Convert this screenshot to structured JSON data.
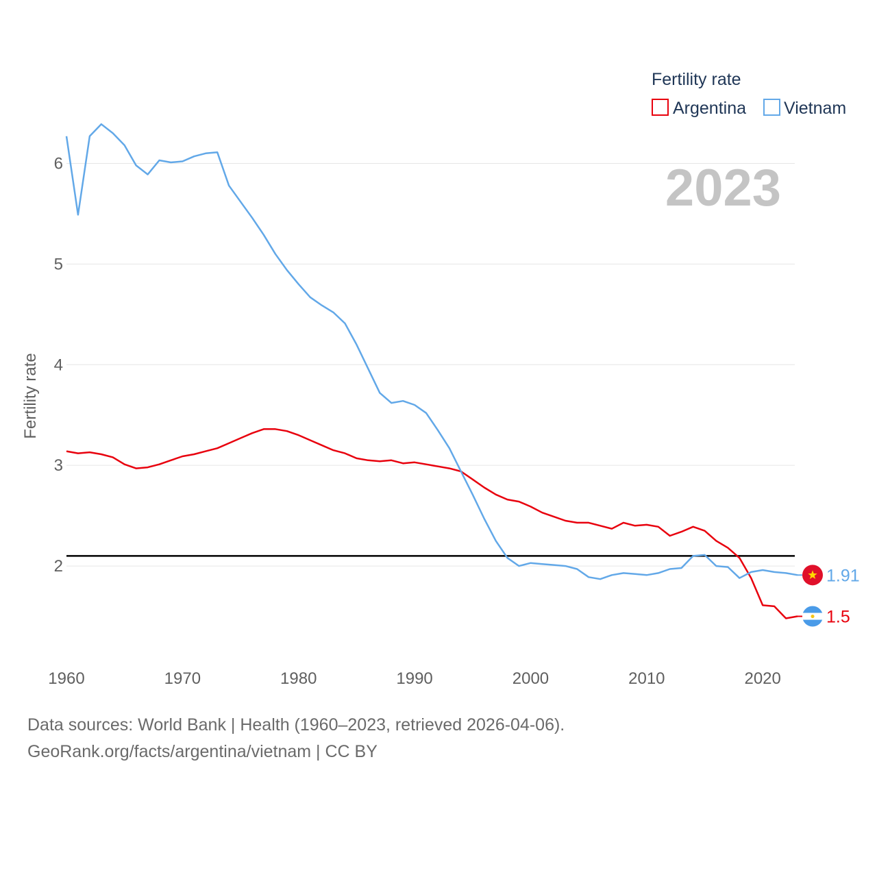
{
  "chart_data": {
    "type": "line",
    "title": "Fertility rate",
    "ylabel": "Fertility rate",
    "xlabel": "",
    "year_label": "2023",
    "xlim": [
      1960,
      2023
    ],
    "ylim": [
      1.0,
      6.5
    ],
    "x_ticks": [
      1960,
      1970,
      1980,
      1990,
      2000,
      2010,
      2020
    ],
    "y_ticks": [
      2,
      3,
      4,
      5,
      6
    ],
    "reference_line": 2.1,
    "x": [
      1960,
      1961,
      1962,
      1963,
      1964,
      1965,
      1966,
      1967,
      1968,
      1969,
      1970,
      1971,
      1972,
      1973,
      1974,
      1975,
      1976,
      1977,
      1978,
      1979,
      1980,
      1981,
      1982,
      1983,
      1984,
      1985,
      1986,
      1987,
      1988,
      1989,
      1990,
      1991,
      1992,
      1993,
      1994,
      1995,
      1996,
      1997,
      1998,
      1999,
      2000,
      2001,
      2002,
      2003,
      2004,
      2005,
      2006,
      2007,
      2008,
      2009,
      2010,
      2011,
      2012,
      2013,
      2014,
      2015,
      2016,
      2017,
      2018,
      2019,
      2020,
      2021,
      2022,
      2023
    ],
    "series": [
      {
        "name": "Argentina",
        "color": "#e8000d",
        "end_label": "1.5",
        "flag": "argentina-flag-icon",
        "values": [
          3.14,
          3.12,
          3.13,
          3.11,
          3.08,
          3.01,
          2.97,
          2.98,
          3.01,
          3.05,
          3.09,
          3.11,
          3.14,
          3.17,
          3.22,
          3.27,
          3.32,
          3.36,
          3.36,
          3.34,
          3.3,
          3.25,
          3.2,
          3.15,
          3.12,
          3.07,
          3.05,
          3.04,
          3.05,
          3.02,
          3.03,
          3.01,
          2.99,
          2.97,
          2.94,
          2.86,
          2.78,
          2.71,
          2.66,
          2.64,
          2.59,
          2.53,
          2.49,
          2.45,
          2.43,
          2.43,
          2.4,
          2.37,
          2.43,
          2.4,
          2.41,
          2.39,
          2.3,
          2.34,
          2.39,
          2.35,
          2.25,
          2.18,
          2.08,
          1.88,
          1.61,
          1.6,
          1.48,
          1.5
        ]
      },
      {
        "name": "Vietnam",
        "color": "#62a8e8",
        "end_label": "1.91",
        "flag": "vietnam-flag-icon",
        "values": [
          6.27,
          5.49,
          6.27,
          6.39,
          6.3,
          6.18,
          5.98,
          5.89,
          6.03,
          6.01,
          6.02,
          6.07,
          6.1,
          6.11,
          5.78,
          5.62,
          5.46,
          5.29,
          5.1,
          4.94,
          4.8,
          4.67,
          4.59,
          4.52,
          4.41,
          4.2,
          3.96,
          3.72,
          3.62,
          3.64,
          3.6,
          3.52,
          3.35,
          3.17,
          2.94,
          2.71,
          2.47,
          2.25,
          2.08,
          2.0,
          2.03,
          2.02,
          2.01,
          2.0,
          1.97,
          1.89,
          1.87,
          1.91,
          1.93,
          1.92,
          1.91,
          1.93,
          1.97,
          1.98,
          2.1,
          2.11,
          2.0,
          1.99,
          1.88,
          1.94,
          1.96,
          1.94,
          1.93,
          1.91
        ]
      }
    ]
  },
  "footer": {
    "line1": "Data sources: World Bank | Health (1960–2023, retrieved 2026-04-06).",
    "line2": "GeoRank.org/facts/argentina/vietnam | CC BY"
  }
}
